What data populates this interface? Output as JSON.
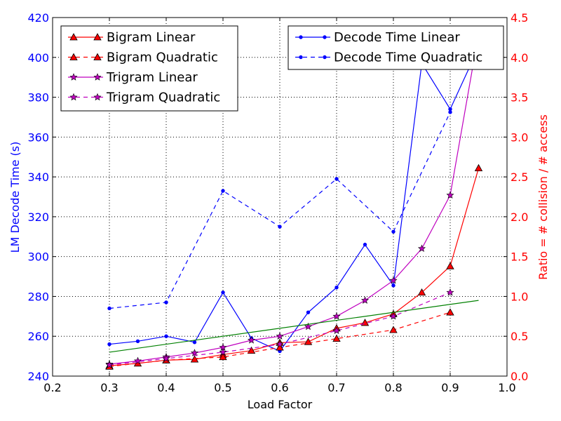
{
  "chart_data": {
    "type": "line",
    "xlabel": "Load Factor",
    "ylabel_left": "LM Decode Time (s)",
    "ylabel_right": "Ratio = # collision / # access",
    "xlim": [
      0.2,
      1.0
    ],
    "ylim_left": [
      240,
      420
    ],
    "ylim_right": [
      0.0,
      4.5
    ],
    "x_ticks": [
      "0.2",
      "0.3",
      "0.4",
      "0.5",
      "0.6",
      "0.7",
      "0.8",
      "0.9",
      "1.0"
    ],
    "left_ticks": [
      "240",
      "260",
      "280",
      "300",
      "320",
      "340",
      "360",
      "380",
      "400",
      "420"
    ],
    "right_ticks": [
      "0.0",
      "0.5",
      "1.0",
      "1.5",
      "2.0",
      "2.5",
      "3.0",
      "3.5",
      "4.0",
      "4.5"
    ],
    "grid": true,
    "colors": {
      "left_axis": "#0000ff",
      "right_axis": "#ff0000"
    },
    "series": [
      {
        "name": "Decode Time Linear",
        "axis": "left",
        "color": "#0000ff",
        "dash": "solid",
        "marker": "dot",
        "x": [
          0.3,
          0.35,
          0.4,
          0.45,
          0.5,
          0.55,
          0.6,
          0.65,
          0.7,
          0.75,
          0.8,
          0.85,
          0.9,
          0.95
        ],
        "y": [
          256,
          257.5,
          260,
          257,
          282,
          259,
          252.5,
          272,
          284.5,
          306,
          285.5,
          397,
          374,
          405
        ]
      },
      {
        "name": "Decode Time Quadratic",
        "axis": "left",
        "color": "#0000ff",
        "dash": "dashed",
        "marker": "dot",
        "x": [
          0.3,
          0.4,
          0.5,
          0.6,
          0.7,
          0.8,
          0.9
        ],
        "y": [
          274,
          277,
          333,
          315,
          339,
          312.5,
          372.5
        ]
      },
      {
        "name": "Bigram Linear",
        "axis": "right",
        "color": "#ff0000",
        "dash": "solid",
        "marker": "triangle",
        "x": [
          0.3,
          0.35,
          0.4,
          0.45,
          0.5,
          0.55,
          0.6,
          0.65,
          0.7,
          0.75,
          0.8,
          0.85,
          0.9,
          0.95
        ],
        "y": [
          0.13,
          0.16,
          0.2,
          0.21,
          0.27,
          0.32,
          0.42,
          0.43,
          0.6,
          0.67,
          0.78,
          1.05,
          1.38,
          2.61
        ]
      },
      {
        "name": "Bigram Quadratic",
        "axis": "right",
        "color": "#ff0000",
        "dash": "dashed",
        "marker": "triangle",
        "x": [
          0.3,
          0.4,
          0.5,
          0.6,
          0.7,
          0.8,
          0.9
        ],
        "y": [
          0.12,
          0.2,
          0.24,
          0.36,
          0.47,
          0.58,
          0.8
        ]
      },
      {
        "name": "Trigram Linear",
        "axis": "right",
        "color": "#bf00bf",
        "dash": "solid",
        "marker": "star",
        "x": [
          0.3,
          0.35,
          0.4,
          0.45,
          0.5,
          0.55,
          0.6,
          0.65,
          0.7,
          0.75,
          0.8,
          0.85,
          0.9,
          0.95
        ],
        "y": [
          0.15,
          0.19,
          0.24,
          0.29,
          0.36,
          0.45,
          0.5,
          0.62,
          0.75,
          0.95,
          1.2,
          1.6,
          2.27,
          4.3
        ]
      },
      {
        "name": "Trigram Quadratic",
        "axis": "right",
        "color": "#bf00bf",
        "dash": "dashed",
        "marker": "star",
        "x": [
          0.3,
          0.4,
          0.5,
          0.6,
          0.7,
          0.8,
          0.9
        ],
        "y": [
          0.14,
          0.22,
          0.3,
          0.4,
          0.57,
          0.75,
          1.05
        ]
      },
      {
        "name": "",
        "axis": "right",
        "color": "#008000",
        "dash": "solid",
        "marker": "none",
        "x": [
          0.3,
          0.95
        ],
        "y": [
          0.3,
          0.95
        ]
      }
    ],
    "legends": [
      {
        "placement": "top-left",
        "entries": [
          "Bigram Linear",
          "Bigram Quadratic",
          "Trigram Linear",
          "Trigram Quadratic"
        ]
      },
      {
        "placement": "top-right",
        "entries": [
          "Decode Time Linear",
          "Decode Time Quadratic"
        ]
      }
    ]
  }
}
